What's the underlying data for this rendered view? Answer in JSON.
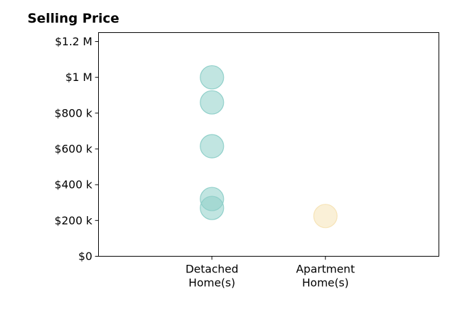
{
  "chart_data": {
    "type": "scatter",
    "title": "Selling Price",
    "xlabel": "",
    "ylabel": "",
    "categories": [
      [
        "Detached",
        "Home(s)"
      ],
      [
        "Apartment",
        "Home(s)"
      ]
    ],
    "xlim": [
      0,
      3
    ],
    "ylim": [
      0,
      1250000
    ],
    "y_ticks": [
      {
        "value": 0,
        "label": "$0"
      },
      {
        "value": 200000,
        "label": "$200 k"
      },
      {
        "value": 400000,
        "label": "$400 k"
      },
      {
        "value": 600000,
        "label": "$600 k"
      },
      {
        "value": 800000,
        "label": "$800 k"
      },
      {
        "value": 1000000,
        "label": "$1 M"
      },
      {
        "value": 1200000,
        "label": "$1.2 M"
      }
    ],
    "series": [
      {
        "category": 0,
        "color": "#8ecfc9",
        "values": [
          1000000,
          860000,
          615000,
          320000,
          270000
        ]
      },
      {
        "category": 1,
        "color": "#f6e3b6",
        "values": [
          225000
        ]
      }
    ],
    "grid": false,
    "legend": "none"
  }
}
